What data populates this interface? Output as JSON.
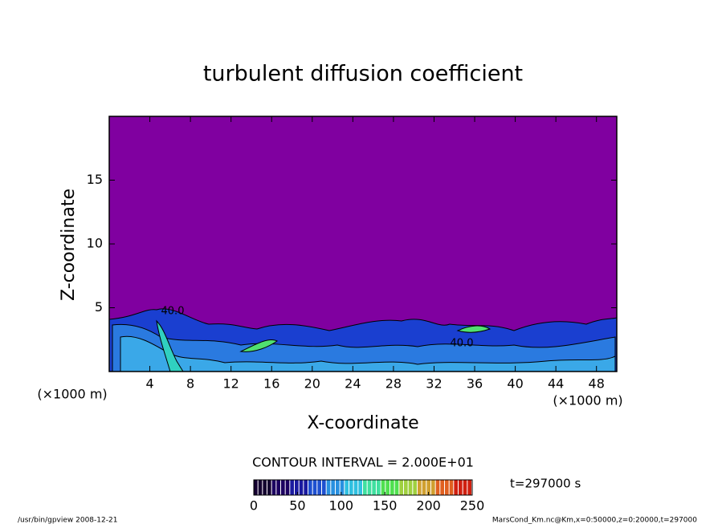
{
  "chart_data": {
    "type": "contour",
    "title": "turbulent diffusion coefficient",
    "xlabel": "X-coordinate",
    "ylabel": "Z-coordinate",
    "x_units_left": "(×1000 m)",
    "x_units_right": "(×1000 m)",
    "xlim": [
      0,
      50
    ],
    "xticks": [
      4,
      8,
      12,
      16,
      20,
      24,
      28,
      32,
      36,
      40,
      44,
      48
    ],
    "ylim": [
      0,
      20
    ],
    "yticks": [
      5,
      10,
      15
    ],
    "field_color": "#8000a0",
    "contour_labels": [
      "40.0",
      "40.0"
    ],
    "contour_interval": "CONTOUR INTERVAL = 2.000E+01",
    "time_label": "t=297000 s",
    "colorbar": {
      "lim": [
        0,
        250
      ],
      "ticks": [
        0,
        50,
        100,
        150,
        200,
        250
      ],
      "colors": [
        "#140030",
        "#1c0060",
        "#1a1aa0",
        "#1e50d0",
        "#2890e0",
        "#30c0e0",
        "#40e0a0",
        "#50e050",
        "#a0d040",
        "#d0a030",
        "#e06020",
        "#d02010"
      ]
    },
    "footer_left": "/usr/bin/gpview  2008-12-21",
    "footer_right": "MarsCond_Km.nc@Km,x=0:50000,z=0:20000,t=297000"
  }
}
